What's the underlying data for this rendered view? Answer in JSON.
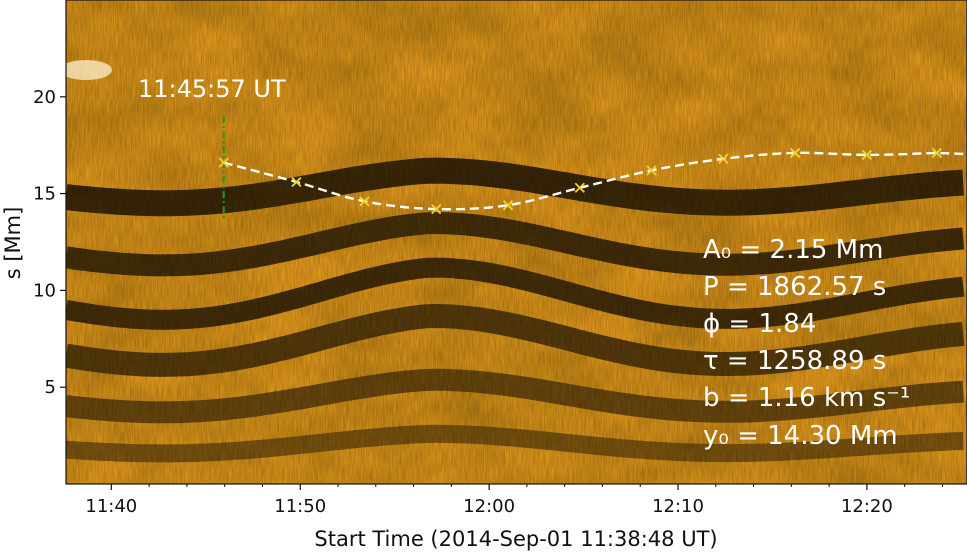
{
  "chart_data": {
    "type": "scatter",
    "xlabel": "Start Time (2014-Sep-01 11:38:48 UT)",
    "ylabel": "s [Mm]",
    "x_ticks": [
      "11:40",
      "11:50",
      "12:00",
      "12:10",
      "12:20"
    ],
    "y_ticks": [
      "5",
      "10",
      "15",
      "20"
    ],
    "x_range_min": [
      -1.2,
      46.5
    ],
    "ylim": [
      0,
      25
    ],
    "marker_time_label": "11:45:57 UT",
    "marker_time_min": 7.15,
    "series": [
      {
        "marker": "x",
        "color": "#f2d530",
        "x_min": [
          7.15,
          11.0,
          14.6,
          18.4,
          22.2,
          26.0,
          29.8,
          33.6,
          37.4,
          41.2,
          44.9
        ],
        "y_mm": [
          16.6,
          15.6,
          14.6,
          14.2,
          14.4,
          15.3,
          16.2,
          16.8,
          17.1,
          17.0,
          17.1
        ]
      }
    ],
    "fit": {
      "style": "dashed",
      "color": "#ffffff",
      "A0": 2.15,
      "P": 1862.57,
      "phi": 1.84,
      "tau": 1258.89,
      "b": 1.16,
      "y0": 14.3
    },
    "annotations": {
      "A0": "A₀ = 2.15 Mm",
      "P": "P   = 1862.57 s",
      "phi": "ϕ   = 1.84",
      "tau": "τ   = 1258.89 s",
      "b": "b   = 1.16 km s⁻¹",
      "y0": "y₀  = 14.30 Mm"
    },
    "colors": {
      "background_bright": "#f0a21e",
      "background_dark": "#1a1206",
      "marker_line": "#1f9a1f"
    }
  }
}
